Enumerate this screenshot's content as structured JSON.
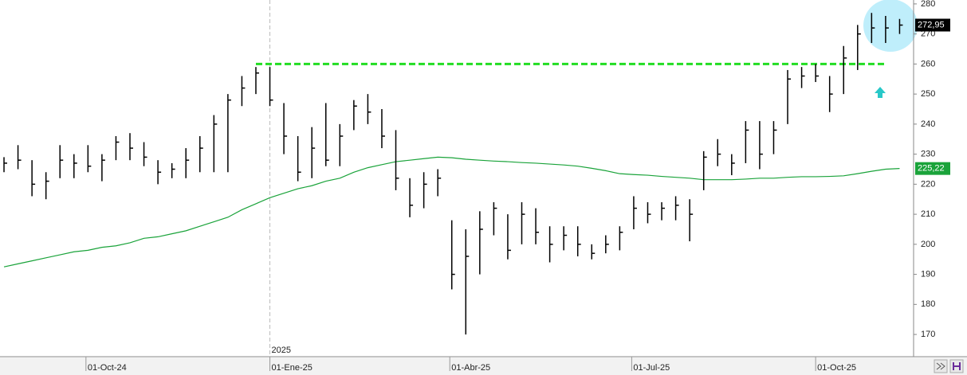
{
  "chart_data": {
    "type": "ohlc",
    "x": [
      "2024-08-21",
      "2024-08-28",
      "2024-09-04",
      "2024-09-11",
      "2024-09-18",
      "2024-09-25",
      "2024-10-02",
      "2024-10-09",
      "2024-10-16",
      "2024-10-23",
      "2024-10-30",
      "2024-11-06",
      "2024-11-13",
      "2024-11-20",
      "2024-11-27",
      "2024-12-04",
      "2024-12-11",
      "2024-12-18",
      "2024-12-25",
      "2025-01-01",
      "2025-01-08",
      "2025-01-15",
      "2025-01-22",
      "2025-01-29",
      "2025-02-05",
      "2025-02-12",
      "2025-02-19",
      "2025-02-26",
      "2025-03-05",
      "2025-03-12",
      "2025-03-19",
      "2025-03-26",
      "2025-04-02",
      "2025-04-09",
      "2025-04-16",
      "2025-04-23",
      "2025-04-30",
      "2025-05-07",
      "2025-05-14",
      "2025-05-21",
      "2025-05-28",
      "2025-06-04",
      "2025-06-11",
      "2025-06-18",
      "2025-06-25",
      "2025-07-02",
      "2025-07-09",
      "2025-07-16",
      "2025-07-23",
      "2025-07-30",
      "2025-08-06",
      "2025-08-13",
      "2025-08-20",
      "2025-08-27",
      "2025-09-03",
      "2025-09-10",
      "2025-09-17",
      "2025-09-24",
      "2025-10-01",
      "2025-10-08",
      "2025-10-15",
      "2025-10-22",
      "2025-10-29",
      "2025-11-05",
      "2025-11-12"
    ],
    "high": [
      229,
      233,
      228,
      224,
      233,
      230,
      233,
      230,
      236,
      237,
      234,
      228,
      227,
      232,
      236,
      243,
      250,
      256,
      259,
      259,
      247,
      236,
      239,
      247,
      240,
      248,
      250,
      245,
      238,
      222,
      224,
      225,
      208,
      205,
      211,
      214,
      210,
      214,
      212,
      206,
      206,
      206,
      200,
      203,
      206,
      216,
      214,
      214,
      216,
      215,
      231,
      235,
      230,
      241,
      241,
      241,
      258,
      259,
      260,
      256,
      266,
      273,
      277,
      276,
      275
    ],
    "low": [
      224,
      225,
      216,
      215,
      222,
      222,
      224,
      221,
      228,
      228,
      226,
      220,
      222,
      222,
      224,
      224,
      224,
      246,
      250,
      246,
      230,
      221,
      222,
      226,
      226,
      238,
      240,
      232,
      218,
      209,
      212,
      216,
      185,
      170,
      190,
      203,
      195,
      200,
      200,
      194,
      198,
      196,
      195,
      197,
      198,
      205,
      207,
      208,
      208,
      201,
      218,
      226,
      223,
      227,
      225,
      230,
      240,
      252,
      254,
      244,
      250,
      258,
      267,
      267,
      270
    ],
    "close": [
      227,
      228,
      220,
      221,
      228,
      227,
      226,
      228,
      234,
      232,
      229,
      224,
      225,
      228,
      232,
      240,
      248,
      252,
      257,
      248,
      236,
      224,
      232,
      228,
      236,
      246,
      244,
      236,
      222,
      213,
      220,
      222,
      190,
      196,
      205,
      212,
      198,
      210,
      204,
      200,
      203,
      200,
      197,
      200,
      204,
      212,
      210,
      212,
      213,
      210,
      229,
      230,
      227,
      238,
      230,
      238,
      255,
      256,
      256,
      250,
      262,
      270,
      272,
      272,
      272.95
    ],
    "close_label": "272,95",
    "bar_color": "#000000",
    "ma": {
      "color": "#1aa33a",
      "value_label": "225,22",
      "values": [
        192.5,
        193.5,
        194.5,
        195.5,
        196.5,
        197.5,
        198,
        199,
        199.5,
        200.5,
        202,
        202.5,
        203.5,
        204.5,
        206,
        207.5,
        209,
        211.5,
        213.5,
        215.5,
        217,
        218.5,
        219.5,
        221,
        222,
        224,
        225.5,
        226.5,
        227.5,
        228,
        228.5,
        229,
        228.8,
        228.3,
        228,
        227.7,
        227.5,
        227.2,
        227,
        226.7,
        226.4,
        226,
        225.3,
        224.5,
        223.5,
        223.2,
        223,
        222.6,
        222.3,
        222,
        221.5,
        221.5,
        221.5,
        221.7,
        222,
        222,
        222.3,
        222.5,
        222.5,
        222.6,
        222.8,
        223.5,
        224.3,
        225,
        225.22
      ]
    },
    "hline": {
      "value": 260,
      "from": "2024-12-25",
      "to": "2025-11-05",
      "color": "#22dd22"
    },
    "xlim": [
      "2024-08-19",
      "2025-11-19"
    ],
    "xticks": [
      {
        "value": "2024-10-01",
        "label": "01-Oct-24"
      },
      {
        "value": "2025-01-01",
        "label": "01-Ene-25"
      },
      {
        "value": "2025-04-01",
        "label": "01-Abr-25"
      },
      {
        "value": "2025-07-01",
        "label": "01-Jul-25"
      },
      {
        "value": "2025-10-01",
        "label": "01-Oct-25"
      }
    ],
    "year_marker": {
      "value": "2025-01-01",
      "label": "2025"
    },
    "ylim": [
      162.6,
      281.3
    ],
    "yticks": [
      170,
      180,
      190,
      200,
      210,
      220,
      230,
      240,
      250,
      260,
      270,
      280
    ]
  }
}
